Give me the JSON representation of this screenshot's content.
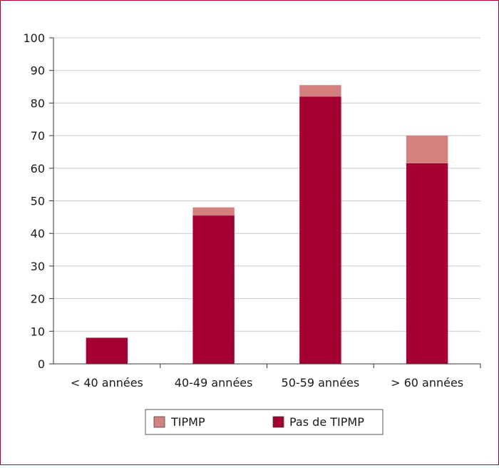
{
  "chart_data": {
    "type": "bar",
    "stacked": true,
    "categories": [
      "< 40 années",
      "40-49 années",
      "50-59 années",
      "> 60 années"
    ],
    "series": [
      {
        "name": "Pas de TIPMP",
        "color": "#a50034",
        "values": [
          8,
          45.5,
          82,
          61.5
        ]
      },
      {
        "name": "TIPMP",
        "color": "#d4807f",
        "values": [
          0,
          2.5,
          3.5,
          8.5
        ]
      }
    ],
    "ylim": [
      0,
      100
    ],
    "yticks": [
      0,
      10,
      20,
      30,
      40,
      50,
      60,
      70,
      80,
      90,
      100
    ],
    "grid": true,
    "legend": {
      "placement": "bottom",
      "entries": [
        {
          "label": "TIPMP",
          "color": "#d4807f"
        },
        {
          "label": "Pas de TIPMP",
          "color": "#a50034"
        }
      ]
    }
  }
}
